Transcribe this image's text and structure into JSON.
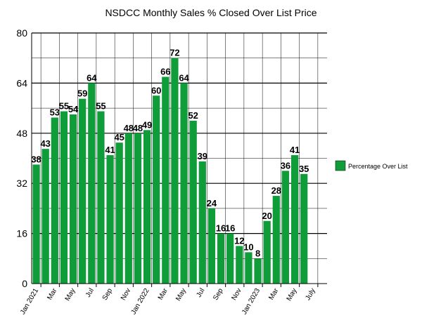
{
  "chart_data": {
    "type": "bar",
    "title": "NSDCC Monthly Sales % Closed Over List Price",
    "xlabel": "",
    "ylabel": "",
    "ylim": [
      0,
      80
    ],
    "yticks": [
      0,
      16,
      32,
      48,
      64,
      80
    ],
    "grid": true,
    "legend_position": "right",
    "categories": [
      "Jan 2021",
      "Feb 2021",
      "Mar 2021",
      "Apr 2021",
      "May 2021",
      "Jun 2021",
      "Jul 2021",
      "Aug 2021",
      "Sep 2021",
      "Oct 2021",
      "Nov 2021",
      "Dec 2021",
      "Jan 2022",
      "Feb 2022",
      "Mar 2022",
      "Apr 2022",
      "May 2022",
      "Jun 2022",
      "Jul 2022",
      "Aug 2022",
      "Sep 2022",
      "Oct 2022",
      "Nov 2022",
      "Dec 2022",
      "Jan 2023",
      "Feb 2023",
      "Mar 2023",
      "Apr 2023",
      "May 2023",
      "Jun 2023",
      "Jul 2023",
      "Aug 2023"
    ],
    "tick_labels": [
      "Jan 2021",
      "",
      "Mar",
      "",
      "May",
      "",
      "Jul",
      "",
      "Sep",
      "",
      "Nov",
      "",
      "Jan 2022",
      "",
      "Mar",
      "",
      "May",
      "",
      "Jul",
      "",
      "Sep",
      "",
      "Nov",
      "",
      "Jan 2023",
      "",
      "Mar",
      "",
      "May",
      "",
      "July",
      ""
    ],
    "series": [
      {
        "name": "Percentage Over List",
        "color": "#0f9d3a",
        "values": [
          38,
          43,
          53,
          55,
          54,
          59,
          64,
          55,
          41,
          45,
          48,
          48,
          49,
          60,
          66,
          72,
          64,
          52,
          39,
          24,
          16,
          16,
          12,
          10,
          8,
          20,
          28,
          36,
          41,
          35,
          null,
          null
        ]
      }
    ]
  }
}
